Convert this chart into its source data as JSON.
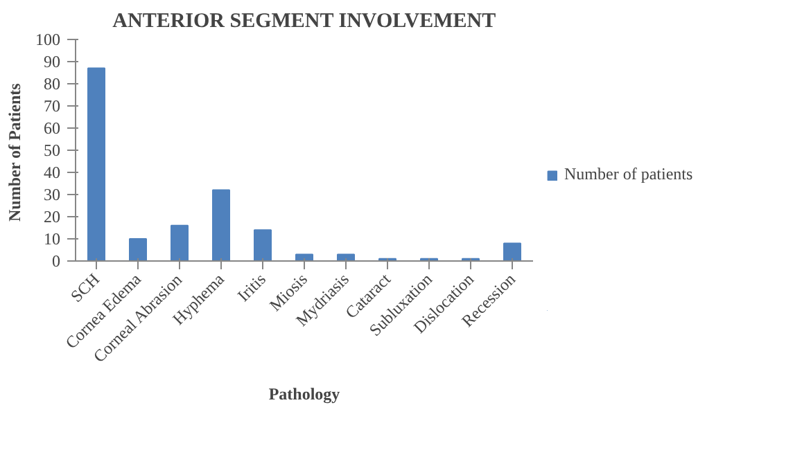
{
  "chart_data": {
    "type": "bar",
    "title": "ANTERIOR SEGMENT INVOLVEMENT",
    "xlabel": "Pathology",
    "ylabel": "Number  of Patients",
    "categories": [
      "SCH",
      "Cornea Edema",
      "Corneal Abrasion",
      "Hyphema",
      "Iritis",
      "Miosis",
      "Mydriasis",
      "Cataract",
      "Subluxation",
      "Dislocation",
      "Recession"
    ],
    "series": [
      {
        "name": "Number of patients",
        "color": "#4f81bd",
        "values": [
          87,
          10,
          16,
          32,
          14,
          3,
          3,
          1,
          1,
          1,
          8
        ]
      }
    ],
    "ylim": [
      0,
      100
    ],
    "yticks": [
      0,
      10,
      20,
      30,
      40,
      50,
      60,
      70,
      80,
      90,
      100
    ],
    "legend": "right"
  }
}
